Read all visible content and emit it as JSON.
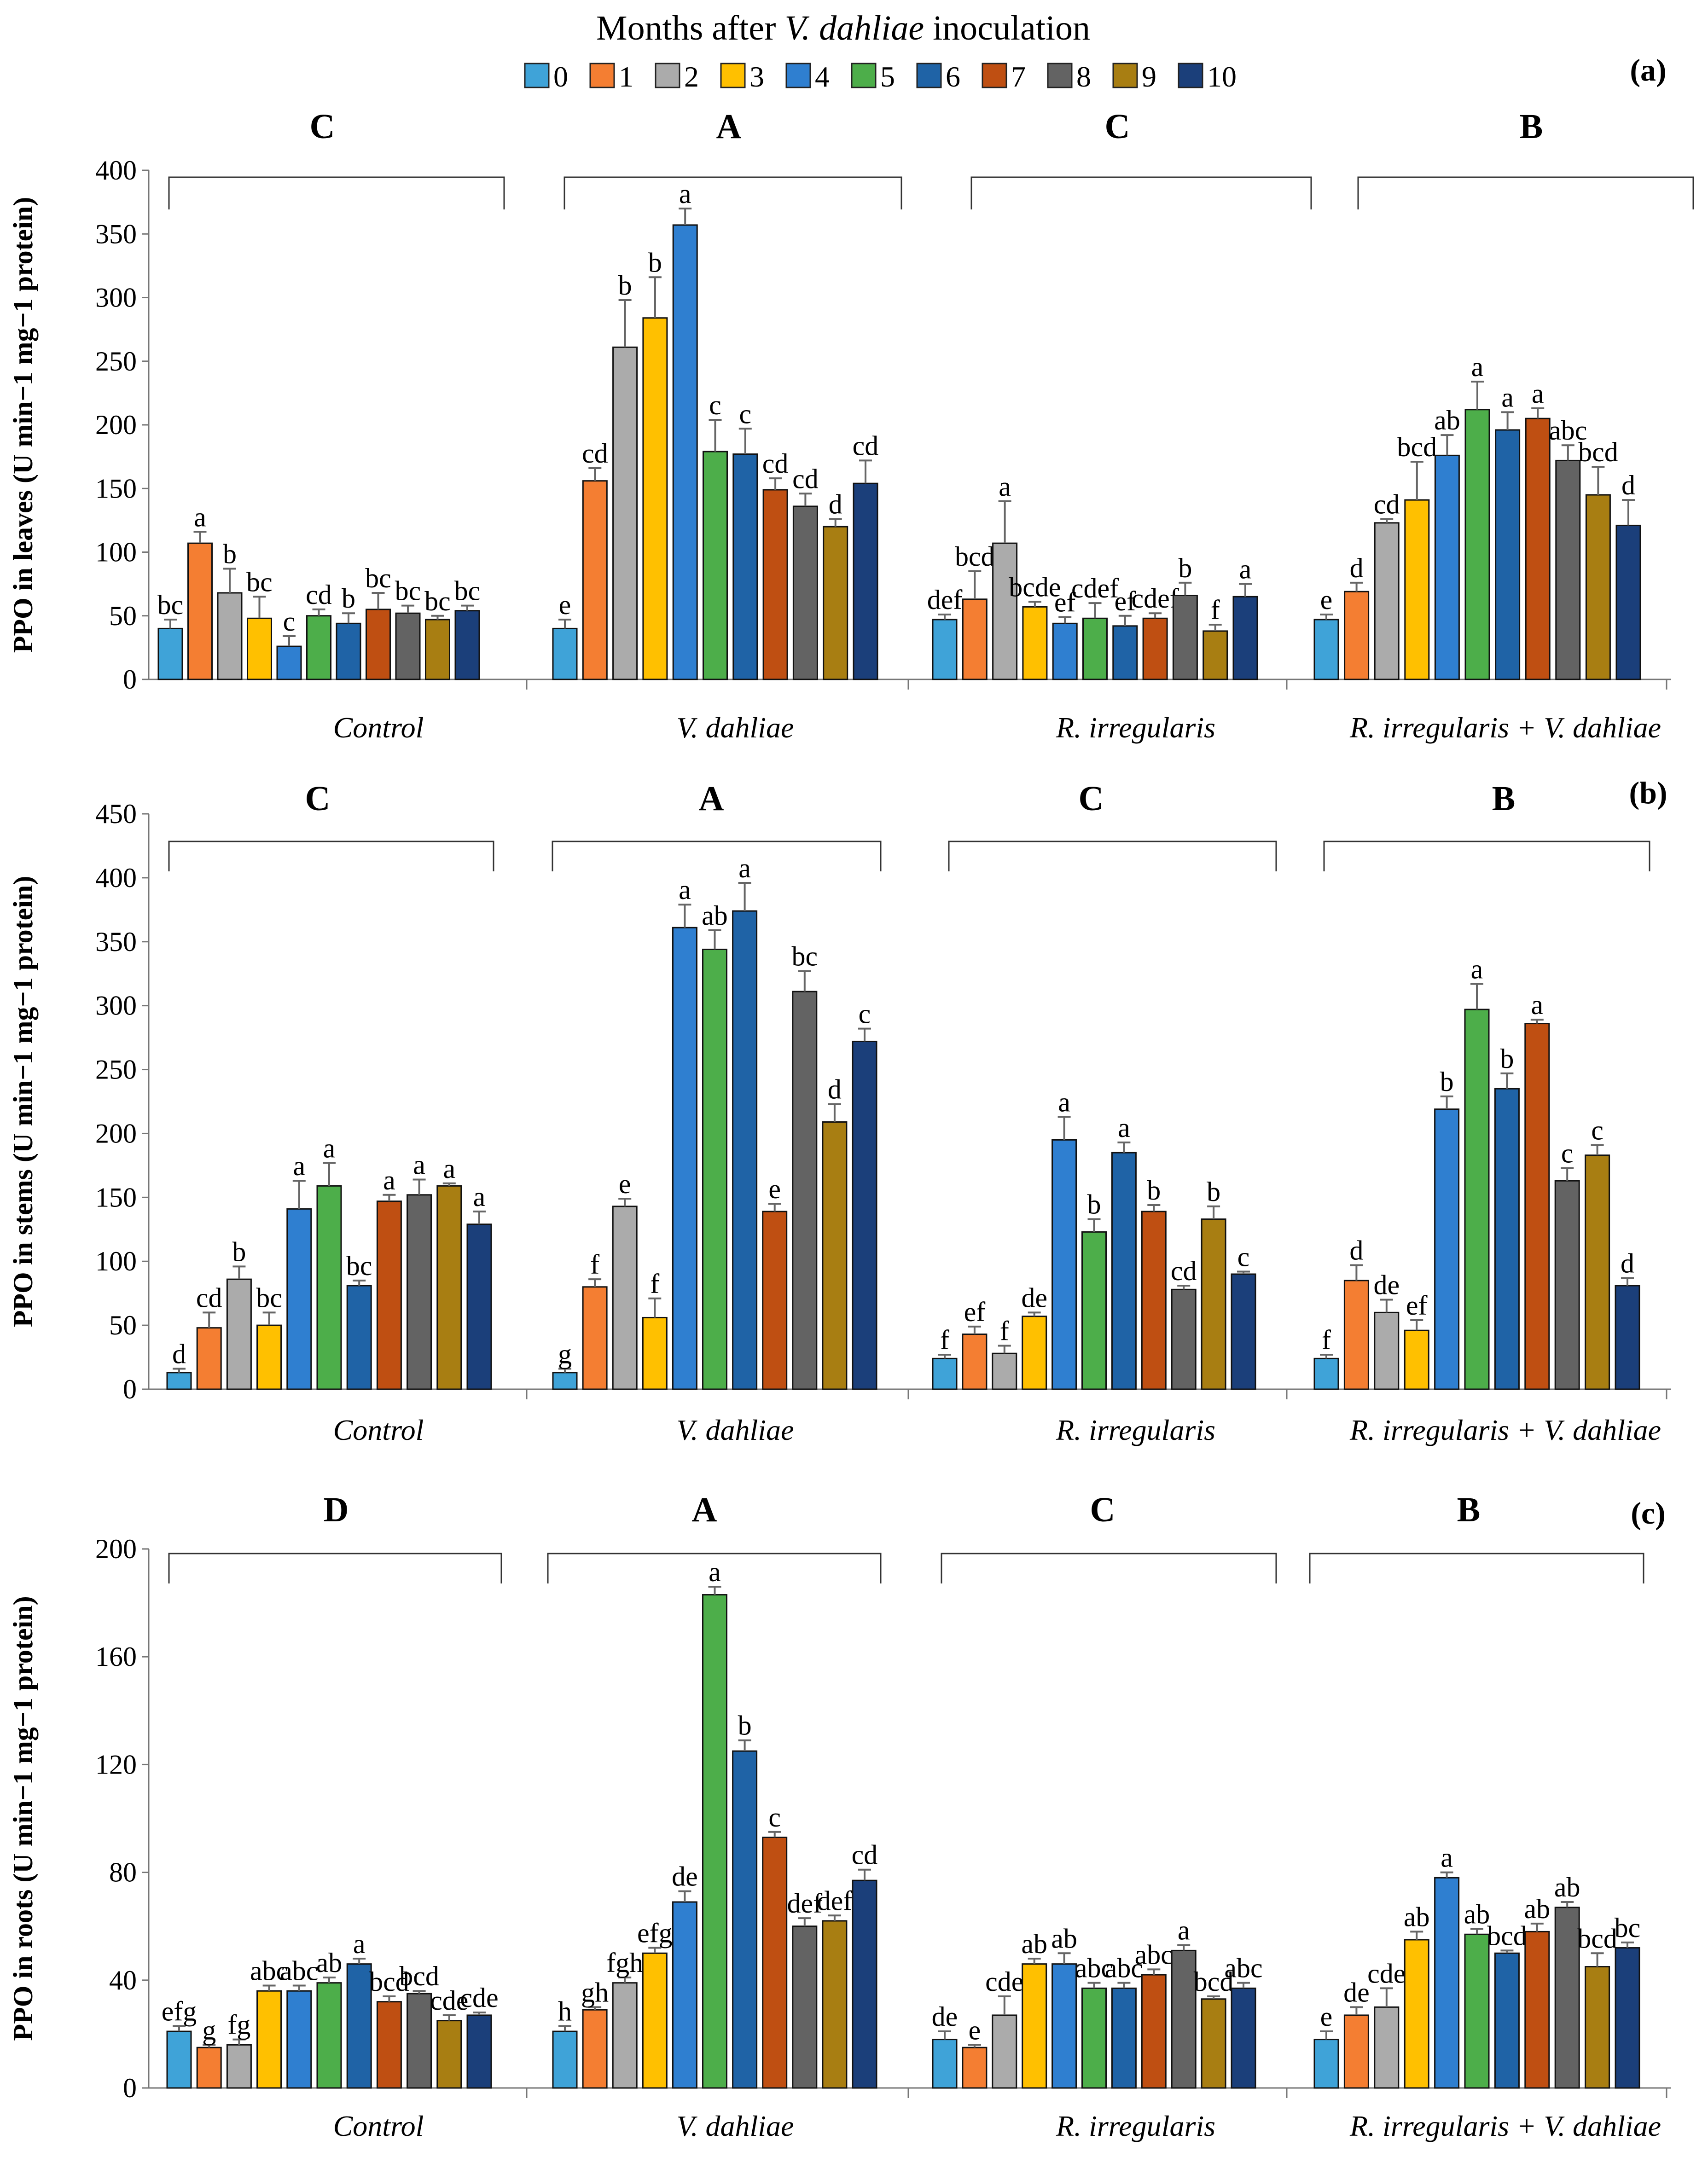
{
  "legend": {
    "title_prefix": "Months after ",
    "title_species": "V. dahliae",
    "title_suffix": " inoculation",
    "series": [
      {
        "label": "0",
        "color": "#3FA3D8"
      },
      {
        "label": "1",
        "color": "#F47E32"
      },
      {
        "label": "2",
        "color": "#ABABAB"
      },
      {
        "label": "3",
        "color": "#FFC000"
      },
      {
        "label": "4",
        "color": "#2F7FD0"
      },
      {
        "label": "5",
        "color": "#4DAE4A"
      },
      {
        "label": "6",
        "color": "#1F63A6"
      },
      {
        "label": "7",
        "color": "#BF4F12"
      },
      {
        "label": "8",
        "color": "#636363"
      },
      {
        "label": "9",
        "color": "#A87E12"
      },
      {
        "label": "10",
        "color": "#1B3F7A"
      }
    ]
  },
  "chart_data": [
    {
      "type": "bar",
      "panel": "(a)",
      "ylabel": "PPO in leaves (U min−1 mg−1 protein)",
      "ylim": [
        0,
        400
      ],
      "yticks": [
        0,
        50,
        100,
        150,
        200,
        250,
        300,
        350,
        400
      ],
      "groups": [
        {
          "name": "Control",
          "letter": "C",
          "values": [
            40,
            107,
            68,
            48,
            26,
            50,
            44,
            55,
            52,
            47,
            54
          ],
          "errors": [
            7,
            9,
            19,
            17,
            8,
            5,
            8,
            13,
            6,
            3,
            4
          ],
          "sig": [
            "bc",
            "a",
            "b",
            "bc",
            "c",
            "cd",
            "b",
            "bc",
            "bc",
            "bc",
            "bc"
          ]
        },
        {
          "name": "V. dahliae",
          "letter": "A",
          "values": [
            40,
            156,
            261,
            284,
            357,
            179,
            177,
            149,
            136,
            120,
            154
          ],
          "errors": [
            7,
            10,
            37,
            32,
            13,
            25,
            20,
            9,
            10,
            6,
            18
          ],
          "sig": [
            "e",
            "cd",
            "b",
            "b",
            "a",
            "c",
            "c",
            "cd",
            "cd",
            "d",
            "cd"
          ]
        },
        {
          "name": "R. irregularis",
          "letter": "C",
          "values": [
            47,
            63,
            107,
            57,
            44,
            48,
            42,
            48,
            66,
            38,
            65
          ],
          "errors": [
            4,
            22,
            33,
            4,
            5,
            12,
            8,
            4,
            10,
            5,
            10
          ],
          "sig": [
            "def",
            "bcd",
            "a",
            "bcde",
            "ef",
            "cdef",
            "ef",
            "cdef",
            "b",
            "f",
            "a"
          ]
        },
        {
          "name": "R. irregularis + V. dahliae",
          "letter": "B",
          "values": [
            47,
            69,
            123,
            141,
            176,
            212,
            196,
            205,
            172,
            145,
            121
          ],
          "errors": [
            4,
            7,
            3,
            30,
            16,
            22,
            14,
            8,
            12,
            22,
            20
          ],
          "sig": [
            "e",
            "d",
            "cd",
            "bcd",
            "ab",
            "a",
            "a",
            "a",
            "abc",
            "bcd",
            "d"
          ]
        }
      ]
    },
    {
      "type": "bar",
      "panel": "(b)",
      "ylabel": "PPO in stems (U min−1 mg−1 protein)",
      "ylim": [
        0,
        450
      ],
      "yticks": [
        0,
        50,
        100,
        150,
        200,
        250,
        300,
        350,
        400,
        450
      ],
      "groups": [
        {
          "name": "Control",
          "letter": "C",
          "values": [
            13,
            48,
            86,
            50,
            141,
            159,
            81,
            147,
            152,
            159,
            129
          ],
          "errors": [
            3,
            12,
            10,
            10,
            22,
            18,
            4,
            5,
            12,
            2,
            10
          ],
          "sig": [
            "d",
            "cd",
            "b",
            "bc",
            "a",
            "a",
            "bc",
            "a",
            "a",
            "a",
            "a"
          ]
        },
        {
          "name": "V. dahliae",
          "letter": "A",
          "values": [
            13,
            80,
            143,
            56,
            361,
            344,
            374,
            139,
            311,
            209,
            272
          ],
          "errors": [
            3,
            6,
            6,
            15,
            18,
            15,
            22,
            6,
            16,
            14,
            10
          ],
          "sig": [
            "g",
            "f",
            "e",
            "f",
            "a",
            "ab",
            "a",
            "e",
            "bc",
            "d",
            "c"
          ]
        },
        {
          "name": "R. irregularis",
          "letter": "C",
          "values": [
            24,
            43,
            28,
            57,
            195,
            123,
            185,
            139,
            78,
            133,
            90
          ],
          "errors": [
            3,
            6,
            6,
            3,
            18,
            10,
            8,
            5,
            3,
            10,
            2
          ],
          "sig": [
            "f",
            "ef",
            "f",
            "de",
            "a",
            "b",
            "a",
            "b",
            "cd",
            "b",
            "c"
          ]
        },
        {
          "name": "R. irregularis + V. dahliae",
          "letter": "B",
          "values": [
            24,
            85,
            60,
            46,
            219,
            297,
            235,
            286,
            163,
            183,
            81
          ],
          "errors": [
            3,
            12,
            10,
            8,
            10,
            20,
            12,
            3,
            10,
            8,
            6
          ],
          "sig": [
            "f",
            "d",
            "de",
            "ef",
            "b",
            "a",
            "b",
            "a",
            "c",
            "c",
            "d"
          ]
        }
      ]
    },
    {
      "type": "bar",
      "panel": "(c)",
      "ylabel": "PPO in roots (U min−1 mg−1 protein)",
      "ylim": [
        0,
        200
      ],
      "yticks": [
        0,
        40,
        80,
        120,
        160,
        200
      ],
      "groups": [
        {
          "name": "Control",
          "letter": "D",
          "values": [
            21,
            15,
            16,
            36,
            36,
            39,
            46,
            32,
            35,
            25,
            27
          ],
          "errors": [
            2,
            1,
            2,
            2,
            2,
            2,
            2,
            2,
            1,
            2,
            1
          ],
          "sig": [
            "efg",
            "g",
            "fg",
            "abc",
            "abc",
            "ab",
            "a",
            "bcd",
            "bcd",
            "cde",
            "cde"
          ]
        },
        {
          "name": "V. dahliae",
          "letter": "A",
          "values": [
            21,
            29,
            39,
            50,
            69,
            183,
            125,
            93,
            60,
            62,
            77
          ],
          "errors": [
            2,
            1,
            2,
            2,
            4,
            3,
            4,
            2,
            3,
            2,
            4
          ],
          "sig": [
            "h",
            "gh",
            "fgh",
            "efg",
            "de",
            "a",
            "b",
            "c",
            "def",
            "def",
            "cd"
          ]
        },
        {
          "name": "R. irregularis",
          "letter": "C",
          "values": [
            18,
            15,
            27,
            46,
            46,
            37,
            37,
            42,
            51,
            33,
            37
          ],
          "errors": [
            3,
            1,
            7,
            2,
            4,
            2,
            2,
            2,
            2,
            1,
            2
          ],
          "sig": [
            "de",
            "e",
            "cde",
            "ab",
            "ab",
            "abc",
            "abc",
            "abc",
            "a",
            "bcd",
            "abc"
          ]
        },
        {
          "name": "R. irregularis + V. dahliae",
          "letter": "B",
          "values": [
            18,
            27,
            30,
            55,
            78,
            57,
            50,
            58,
            67,
            45,
            52
          ],
          "errors": [
            3,
            3,
            7,
            3,
            2,
            2,
            1,
            3,
            2,
            5,
            2
          ],
          "sig": [
            "e",
            "de",
            "cde",
            "ab",
            "a",
            "ab",
            "bcd",
            "ab",
            "ab",
            "bcd",
            "bc"
          ]
        }
      ]
    }
  ]
}
